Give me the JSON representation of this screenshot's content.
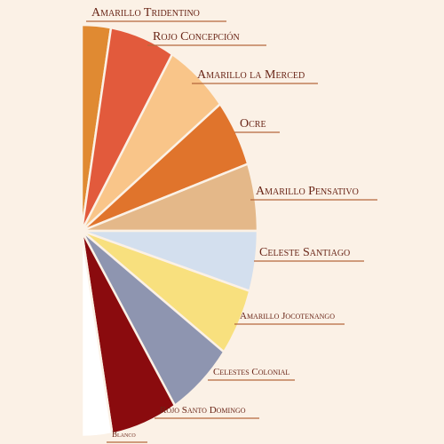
{
  "nodes": [
    {
      "label": "Amarillo Tridentino",
      "color": "#e08a32"
    },
    {
      "label": "Rojo Concepción",
      "color": "#e25a3c"
    },
    {
      "label": "Amarillo la Merced",
      "color": "#f9c589"
    },
    {
      "label": "Ocre",
      "color": "#e0742c"
    },
    {
      "label": "Amarillo Pensativo",
      "color": "#e4b889"
    },
    {
      "label": "Celeste Santiago",
      "color": "#d3dfee"
    },
    {
      "label": "Amarillo Jocotenango",
      "color": "#f8e07e"
    },
    {
      "label": "Celestes Colonial",
      "color": "#8e95b0"
    },
    {
      "label": "Rojo Santo Domingo",
      "color": "#8a0b0e"
    },
    {
      "label": "Blanco",
      "color": "#ffffff"
    }
  ]
}
